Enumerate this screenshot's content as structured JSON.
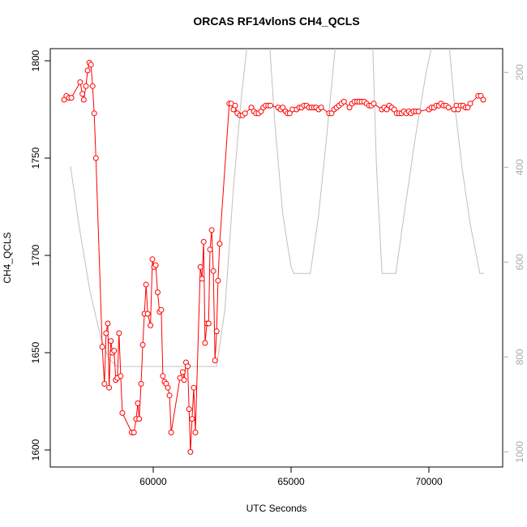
{
  "chart_data": {
    "type": "line",
    "title": "ORCAS RF14vlonS CH4_QCLS",
    "x_label": "UTC Seconds",
    "y_label": "CH4_QCLS",
    "xlim": [
      56265,
      72676
    ],
    "ylim": [
      1591.25,
      1806.25
    ],
    "y2lim": [
      1032,
      150
    ],
    "xticks": [
      60000,
      65000,
      70000
    ],
    "yticks": [
      1600,
      1650,
      1700,
      1750,
      1800
    ],
    "y2ticks": [
      200,
      400,
      600,
      800,
      1000
    ],
    "series": [
      {
        "color": "#ff0000",
        "marker": "circle",
        "x": [
          56770,
          56850,
          56940,
          57030,
          57350,
          57430,
          57480,
          57560,
          57620,
          57680,
          57740,
          57800,
          57860,
          57920,
          58150,
          58230,
          58290,
          58350,
          58400,
          58460,
          58520,
          58580,
          58640,
          58700,
          58760,
          58820,
          58880,
          59220,
          59300,
          59380,
          59440,
          59490,
          59560,
          59620,
          59680,
          59740,
          59800,
          59900,
          59970,
          60030,
          60090,
          60160,
          60230,
          60290,
          60350,
          60410,
          60470,
          60530,
          60590,
          60650,
          60970,
          61070,
          61120,
          61190,
          61250,
          61300,
          61350,
          61410,
          61470,
          61530,
          61710,
          61770,
          61830,
          61880,
          61950,
          62010,
          62060,
          62120,
          62180,
          62240,
          62300,
          62350,
          62410,
          62760,
          62830,
          62910,
          62970,
          63050,
          63150,
          63240,
          63330,
          63560,
          63650,
          63730,
          63820,
          63910,
          63990,
          64080,
          64170,
          64250,
          64530,
          64620,
          64700,
          64800,
          64870,
          64950,
          65050,
          65200,
          65300,
          65380,
          65470,
          65560,
          65650,
          65740,
          65830,
          65910,
          66000,
          66090,
          66380,
          66470,
          66560,
          66650,
          66740,
          66830,
          66920,
          67120,
          67210,
          67300,
          67390,
          67470,
          67560,
          67650,
          67740,
          67830,
          67910,
          68000,
          68290,
          68380,
          68470,
          68560,
          68650,
          68740,
          68830,
          68920,
          69010,
          69090,
          69180,
          69270,
          69350,
          69440,
          69530,
          69620,
          70000,
          70090,
          70180,
          70270,
          70360,
          70440,
          70530,
          70620,
          70710,
          70910,
          71000,
          71060,
          71150,
          71240,
          71330,
          71410,
          71500,
          71790,
          71880,
          71970
        ],
        "values": [
          1780,
          1782,
          1781,
          1781,
          1789,
          1783,
          1780,
          1787,
          1795,
          1799,
          1798,
          1787,
          1773,
          1750,
          1653,
          1634,
          1660,
          1665,
          1632,
          1656,
          1650,
          1651,
          1636,
          1637,
          1660,
          1638,
          1619,
          1609,
          1609,
          1616,
          1624,
          1616,
          1634,
          1654,
          1670,
          1685,
          1670,
          1664,
          1698,
          1694,
          1695,
          1681,
          1671,
          1672,
          1638,
          1635,
          1634,
          1632,
          1628,
          1609,
          1637,
          1640,
          1636,
          1645,
          1643,
          1621,
          1599,
          1616,
          1632,
          1609,
          1694,
          1688,
          1707,
          1655,
          1665,
          1665,
          1703,
          1713,
          1692,
          1646,
          1661,
          1687,
          1706,
          1778,
          1778,
          1775,
          1777,
          1773,
          1772,
          1772,
          1773,
          1776,
          1774,
          1773,
          1773,
          1774,
          1776,
          1777,
          1777,
          1777,
          1776,
          1775,
          1776,
          1774,
          1773,
          1773,
          1775,
          1775,
          1776,
          1776,
          1777,
          1777,
          1776,
          1776,
          1776,
          1776,
          1775,
          1776,
          1773,
          1773,
          1775,
          1776,
          1777,
          1778,
          1779,
          1776,
          1778,
          1779,
          1779,
          1779,
          1779,
          1779,
          1778,
          1777,
          1777,
          1778,
          1775,
          1776,
          1775,
          1777,
          1776,
          1775,
          1773,
          1773,
          1773,
          1774,
          1773,
          1774,
          1773,
          1774,
          1774,
          1774,
          1775,
          1776,
          1776,
          1777,
          1777,
          1778,
          1777,
          1777,
          1776,
          1775,
          1777,
          1775,
          1777,
          1777,
          1776,
          1776,
          1778,
          1782,
          1782,
          1780
        ]
      },
      {
        "color": "#c0c0c0",
        "axis": "y2",
        "x": [
          57000,
          57300,
          57700,
          58100,
          58400,
          58700,
          62300,
          62600,
          62900,
          63200,
          63450,
          64200,
          64400,
          64700,
          65000,
          65100,
          65700,
          66000,
          66300,
          66650,
          67950,
          68100,
          68300,
          68800,
          69100,
          69500,
          69900,
          70200,
          70700,
          70900,
          71200,
          71500,
          71850,
          72000
        ],
        "values": [
          398,
          520,
          660,
          760,
          805,
          820,
          820,
          700,
          450,
          250,
          120,
          120,
          300,
          500,
          610,
          624,
          624,
          500,
          330,
          120,
          120,
          400,
          624,
          624,
          500,
          340,
          200,
          120,
          120,
          250,
          400,
          520,
          624,
          624
        ]
      }
    ]
  }
}
